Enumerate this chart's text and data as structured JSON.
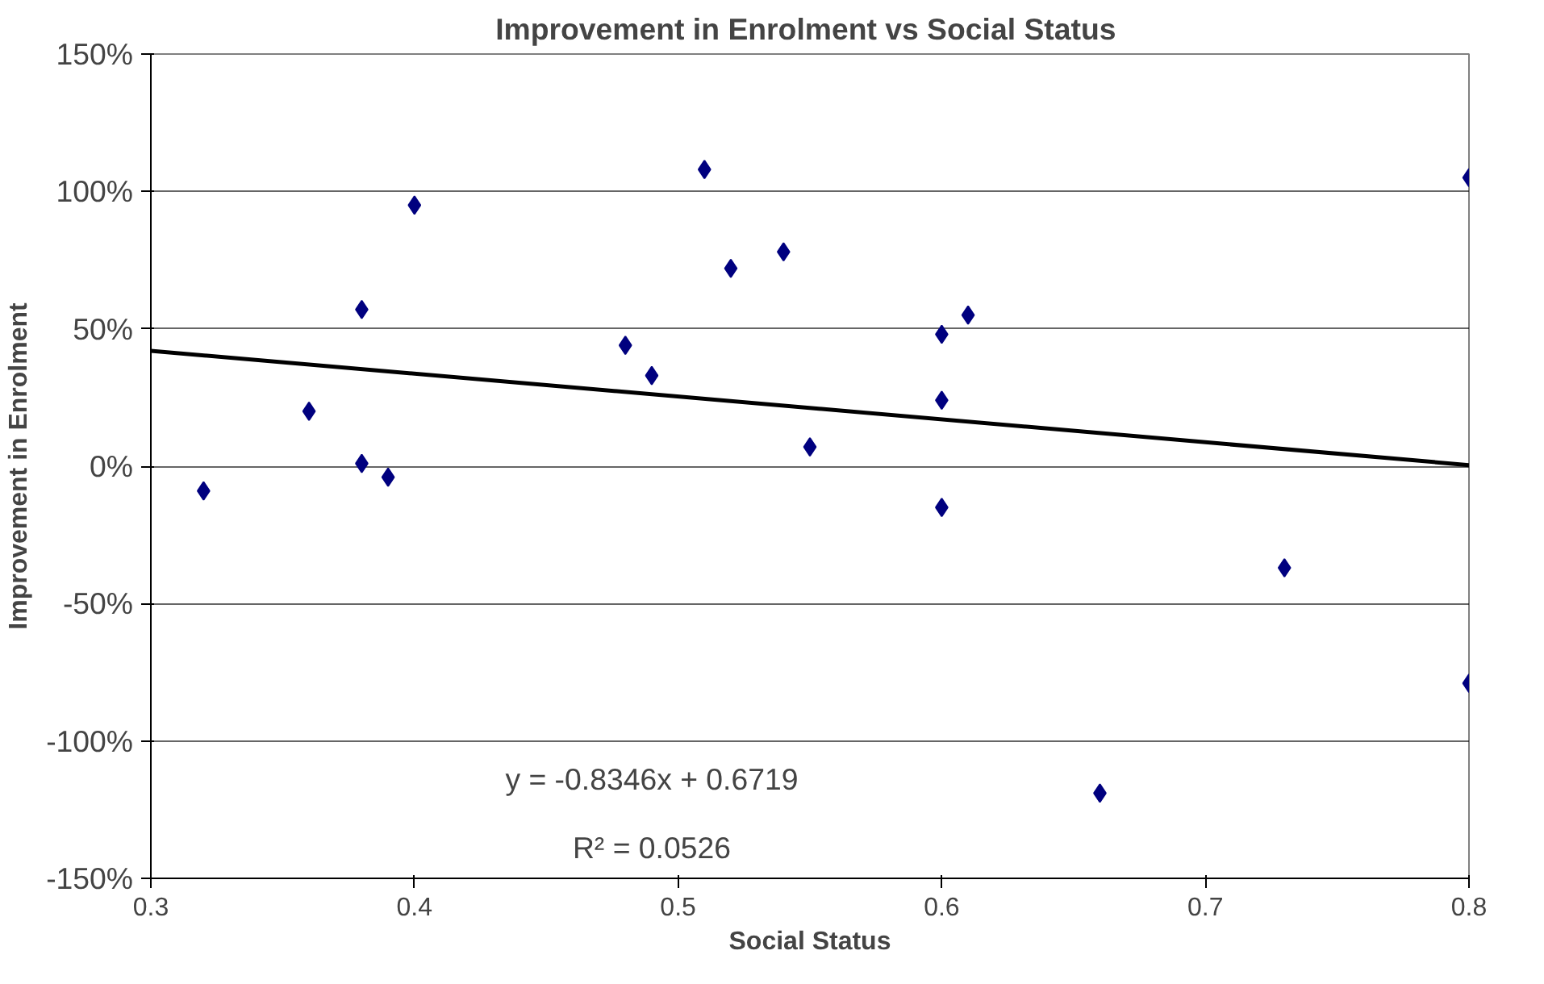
{
  "chart_data": {
    "type": "scatter",
    "title": "Improvement in Enrolment  vs Social Status",
    "xlabel": "Social Status",
    "ylabel": "Improvement in Enrolment",
    "series": [
      {
        "marker": "diamond",
        "color": "#00007f",
        "x": [
          0.32,
          0.36,
          0.38,
          0.38,
          0.39,
          0.4,
          0.48,
          0.49,
          0.51,
          0.52,
          0.54,
          0.55,
          0.6,
          0.6,
          0.6,
          0.61,
          0.66,
          0.73,
          0.8,
          0.8
        ],
        "values": [
          -9,
          20,
          1,
          57,
          -4,
          95,
          44,
          33,
          108,
          72,
          78,
          7,
          48,
          24,
          -15,
          55,
          -119,
          -37,
          105,
          -79
        ]
      },
      {
        "type": "line",
        "color": "#000000",
        "x": [
          0.3,
          0.8
        ],
        "values": [
          42,
          0.4
        ]
      }
    ],
    "xlim": [
      0.3,
      0.8
    ],
    "xticks": [
      0.3,
      0.4,
      0.5,
      0.6,
      0.7,
      0.8
    ],
    "ylim": [
      -150,
      150
    ],
    "yticks": [
      {
        "value": -150,
        "label": "-150%"
      },
      {
        "value": -100,
        "label": "-100%"
      },
      {
        "value": -50,
        "label": "-50%"
      },
      {
        "value": 0,
        "label": "0%"
      },
      {
        "value": 50,
        "label": "50%"
      },
      {
        "value": 100,
        "label": "100%"
      },
      {
        "value": 150,
        "label": "150%"
      }
    ],
    "grid": "y",
    "annotations": [
      "y = -0.8346x + 0.6719",
      "R² = 0.0526"
    ]
  }
}
